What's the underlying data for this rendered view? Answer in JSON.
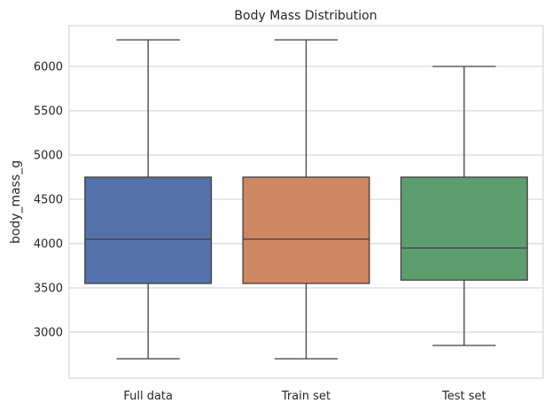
{
  "chart_data": {
    "type": "box",
    "title": "Body Mass Distribution",
    "xlabel": "",
    "ylabel": "body_mass_g",
    "ylim": [
      2480,
      6460
    ],
    "yticks": [
      3000,
      3500,
      4000,
      4500,
      5000,
      5500,
      6000
    ],
    "grid": "horizontal",
    "categories": [
      "Full data",
      "Train set",
      "Test set"
    ],
    "colors": [
      "#5471a9",
      "#cd8762",
      "#5d9e6e"
    ],
    "boxes": [
      {
        "category": "Full data",
        "min": 2700,
        "q1": 3550,
        "median": 4050,
        "q3": 4750,
        "max": 6300
      },
      {
        "category": "Train set",
        "min": 2700,
        "q1": 3550,
        "median": 4050,
        "q3": 4750,
        "max": 6300
      },
      {
        "category": "Test set",
        "min": 2850,
        "q1": 3588,
        "median": 3950,
        "q3": 4750,
        "max": 6000
      }
    ]
  }
}
